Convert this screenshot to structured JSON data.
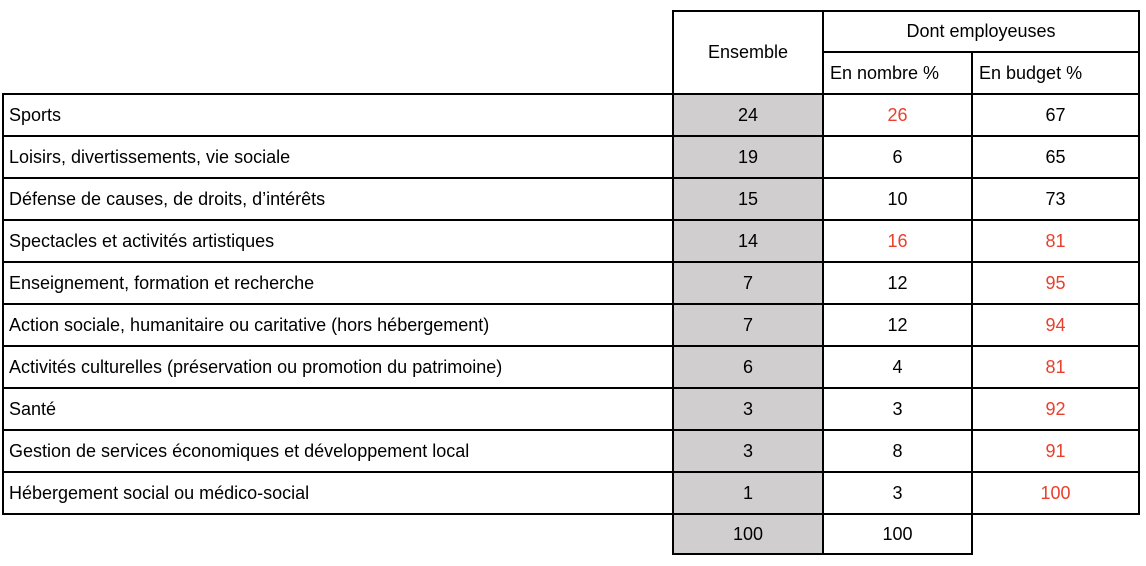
{
  "table": {
    "header": {
      "ensemble": "Ensemble",
      "dont_employeuses": "Dont employeuses",
      "en_nombre": "En nombre %",
      "en_budget": "En budget %"
    },
    "rows": [
      {
        "label": "Sports",
        "ensemble": "24",
        "nombre": "26",
        "nombre_red": true,
        "budget": "67",
        "budget_red": false
      },
      {
        "label": "Loisirs, divertissements, vie sociale",
        "ensemble": "19",
        "nombre": "6",
        "nombre_red": false,
        "budget": "65",
        "budget_red": false
      },
      {
        "label": "Défense de causes, de droits, d’intérêts",
        "ensemble": "15",
        "nombre": "10",
        "nombre_red": false,
        "budget": "73",
        "budget_red": false
      },
      {
        "label": "Spectacles et activités artistiques",
        "ensemble": "14",
        "nombre": "16",
        "nombre_red": true,
        "budget": "81",
        "budget_red": true
      },
      {
        "label": "Enseignement, formation et recherche",
        "ensemble": "7",
        "nombre": "12",
        "nombre_red": false,
        "budget": "95",
        "budget_red": true
      },
      {
        "label": "Action sociale, humanitaire ou caritative (hors hébergement)",
        "ensemble": "7",
        "nombre": "12",
        "nombre_red": false,
        "budget": "94",
        "budget_red": true
      },
      {
        "label": "Activités culturelles (préservation ou promotion du patrimoine)",
        "ensemble": "6",
        "nombre": "4",
        "nombre_red": false,
        "budget": "81",
        "budget_red": true
      },
      {
        "label": "Santé",
        "ensemble": "3",
        "nombre": "3",
        "nombre_red": false,
        "budget": "92",
        "budget_red": true
      },
      {
        "label": "Gestion de services économiques et développement local",
        "ensemble": "3",
        "nombre": "8",
        "nombre_red": false,
        "budget": "91",
        "budget_red": true
      },
      {
        "label": "Hébergement social ou médico-social",
        "ensemble": "1",
        "nombre": "3",
        "nombre_red": false,
        "budget": "100",
        "budget_red": true
      }
    ],
    "total": {
      "ensemble": "100",
      "nombre": "100"
    }
  },
  "colors": {
    "highlight_red": "#e8402e",
    "ensemble_bg": "#d0cece",
    "border": "#000000"
  },
  "chart_data": {
    "type": "table",
    "columns": [
      "Ensemble",
      "Dont employeuses — En nombre %",
      "Dont employeuses — En budget %"
    ],
    "rows": [
      {
        "category": "Sports",
        "ensemble": 24,
        "en_nombre_pct": 26,
        "en_budget_pct": 67
      },
      {
        "category": "Loisirs, divertissements, vie sociale",
        "ensemble": 19,
        "en_nombre_pct": 6,
        "en_budget_pct": 65
      },
      {
        "category": "Défense de causes, de droits, d’intérêts",
        "ensemble": 15,
        "en_nombre_pct": 10,
        "en_budget_pct": 73
      },
      {
        "category": "Spectacles et activités artistiques",
        "ensemble": 14,
        "en_nombre_pct": 16,
        "en_budget_pct": 81
      },
      {
        "category": "Enseignement, formation et recherche",
        "ensemble": 7,
        "en_nombre_pct": 12,
        "en_budget_pct": 95
      },
      {
        "category": "Action sociale, humanitaire ou caritative (hors hébergement)",
        "ensemble": 7,
        "en_nombre_pct": 12,
        "en_budget_pct": 94
      },
      {
        "category": "Activités culturelles (préservation ou promotion du patrimoine)",
        "ensemble": 6,
        "en_nombre_pct": 4,
        "en_budget_pct": 81
      },
      {
        "category": "Santé",
        "ensemble": 3,
        "en_nombre_pct": 3,
        "en_budget_pct": 92
      },
      {
        "category": "Gestion de services économiques et développement local",
        "ensemble": 3,
        "en_nombre_pct": 8,
        "en_budget_pct": 91
      },
      {
        "category": "Hébergement social ou médico-social",
        "ensemble": 1,
        "en_nombre_pct": 3,
        "en_budget_pct": 100
      }
    ],
    "total": {
      "ensemble": 100,
      "en_nombre_pct": 100
    },
    "red_highlighted_cells": [
      {
        "category": "Sports",
        "column": "en_nombre_pct"
      },
      {
        "category": "Spectacles et activités artistiques",
        "column": "en_nombre_pct"
      },
      {
        "category": "Spectacles et activités artistiques",
        "column": "en_budget_pct"
      },
      {
        "category": "Enseignement, formation et recherche",
        "column": "en_budget_pct"
      },
      {
        "category": "Action sociale, humanitaire ou caritative (hors hébergement)",
        "column": "en_budget_pct"
      },
      {
        "category": "Activités culturelles (préservation ou promotion du patrimoine)",
        "column": "en_budget_pct"
      },
      {
        "category": "Santé",
        "column": "en_budget_pct"
      },
      {
        "category": "Gestion de services économiques et développement local",
        "column": "en_budget_pct"
      },
      {
        "category": "Hébergement social ou médico-social",
        "column": "en_budget_pct"
      }
    ]
  }
}
